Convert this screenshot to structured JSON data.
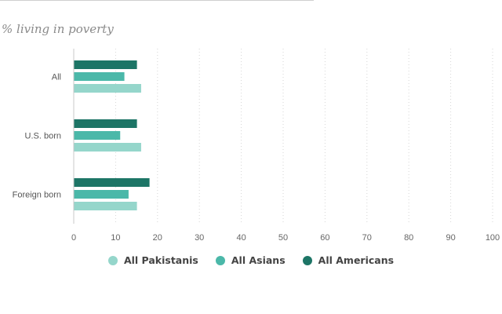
{
  "chart_data": {
    "type": "bar",
    "orientation": "horizontal",
    "subtitle": "% living in poverty",
    "categories": [
      "All",
      "U.S. born",
      "Foreign born"
    ],
    "series": [
      {
        "name": "All Americans",
        "color": "#1d7566",
        "values": [
          15,
          15,
          18
        ]
      },
      {
        "name": "All Asians",
        "color": "#4bb8a9",
        "values": [
          12,
          11,
          13
        ]
      },
      {
        "name": "All Pakistanis",
        "color": "#95d6cb",
        "values": [
          16,
          16,
          15
        ]
      }
    ],
    "xlim": [
      0,
      100
    ],
    "xticks": [
      0,
      10,
      20,
      30,
      40,
      50,
      60,
      70,
      80,
      90,
      100
    ],
    "grid": "vertical dotted",
    "legend_position": "bottom",
    "legend": [
      "All Pakistanis",
      "All Asians",
      "All Americans"
    ]
  }
}
